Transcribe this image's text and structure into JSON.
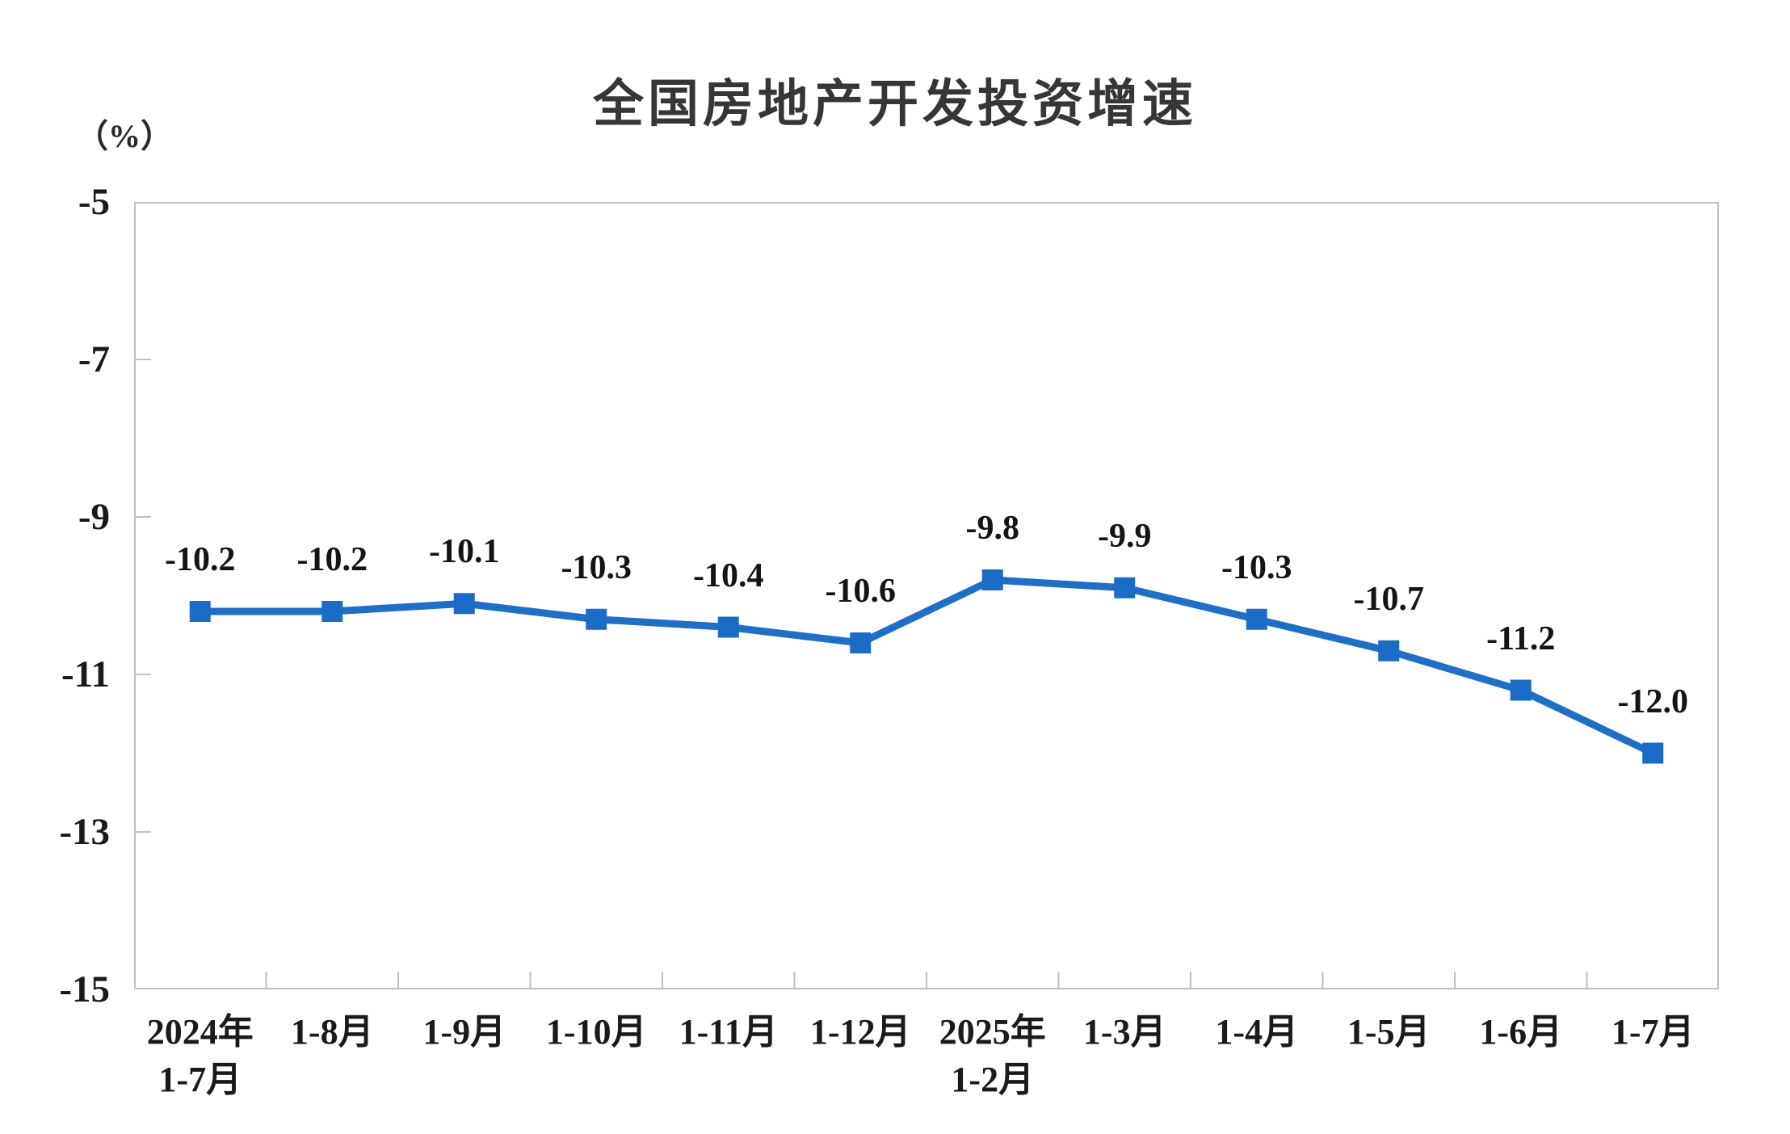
{
  "header": {
    "title": "全国房地产开发投资增速",
    "unit_label": "（%）"
  },
  "chart_data": {
    "type": "line",
    "title": "全国房地产开发投资增速",
    "ylabel": "（%）",
    "xlabel": "",
    "categories": [
      [
        "2024年",
        "1-7月"
      ],
      [
        "1-8月"
      ],
      [
        "1-9月"
      ],
      [
        "1-10月"
      ],
      [
        "1-11月"
      ],
      [
        "1-12月"
      ],
      [
        "2025年",
        "1-2月"
      ],
      [
        "1-3月"
      ],
      [
        "1-4月"
      ],
      [
        "1-5月"
      ],
      [
        "1-6月"
      ],
      [
        "1-7月"
      ]
    ],
    "series": [
      {
        "name": "全国房地产开发投资增速",
        "values": [
          -10.2,
          -10.2,
          -10.1,
          -10.3,
          -10.4,
          -10.6,
          -9.8,
          -9.9,
          -10.3,
          -10.7,
          -11.2,
          -12.0
        ]
      }
    ],
    "data_labels": [
      "-10.2",
      "-10.2",
      "-10.1",
      "-10.3",
      "-10.4",
      "-10.6",
      "-9.8",
      "-9.9",
      "-10.3",
      "-10.7",
      "-11.2",
      "-12.0"
    ],
    "ylim": [
      -15,
      -5
    ],
    "yticks": [
      -5,
      -7,
      -9,
      -11,
      -13,
      -15
    ],
    "grid": false,
    "legend_position": "none",
    "marker": "square",
    "colors": {
      "line": "#1f6fc6",
      "marker": "#1b6cc6",
      "axis": "#bfbfbf",
      "text": "#1a1a1a",
      "title_text": "#363636",
      "background": "#ffffff"
    }
  }
}
